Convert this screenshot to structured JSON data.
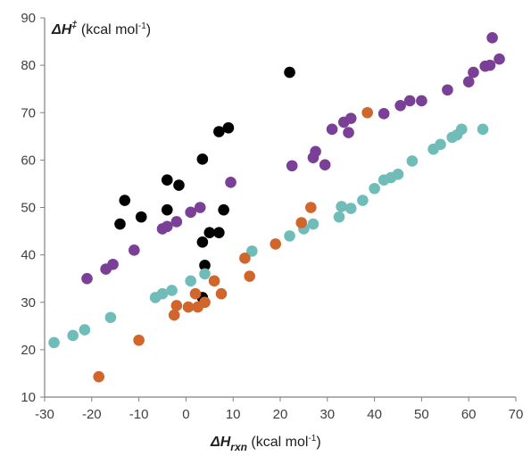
{
  "chart_data": {
    "type": "scatter",
    "xlabel": {
      "symbol": "ΔH",
      "subscript": "rxn",
      "unit": " (kcal mol",
      "unit_sup": "-1",
      "close": ")"
    },
    "ylabel": {
      "symbol": "ΔH",
      "superscript": "‡",
      "unit": " (kcal mol",
      "unit_sup": "-1",
      "close": ")"
    },
    "xlim": [
      -30,
      70
    ],
    "ylim": [
      10,
      90
    ],
    "xticks": [
      "-30",
      "-20",
      "-10",
      "0",
      "10",
      "20",
      "30",
      "40",
      "50",
      "60",
      "70"
    ],
    "yticks": [
      "10",
      "20",
      "30",
      "40",
      "50",
      "60",
      "70",
      "80",
      "90"
    ],
    "grid": false,
    "legend": "none",
    "series": [
      {
        "color": "#000000",
        "points": [
          [
            -13,
            51.5
          ],
          [
            -14,
            46.5
          ],
          [
            -9.5,
            48
          ],
          [
            -4,
            49.5
          ],
          [
            -4,
            55.8
          ],
          [
            -1.5,
            54.7
          ],
          [
            3.5,
            60.2
          ],
          [
            3.5,
            42.7
          ],
          [
            5,
            44.7
          ],
          [
            7,
            44.7
          ],
          [
            7,
            66
          ],
          [
            9,
            66.8
          ],
          [
            8,
            49.5
          ],
          [
            4,
            37.8
          ],
          [
            3.5,
            31
          ],
          [
            22,
            78.5
          ]
        ]
      },
      {
        "color": "#7a3f96",
        "points": [
          [
            -21,
            35
          ],
          [
            -17,
            37
          ],
          [
            -15.5,
            38
          ],
          [
            -11,
            41
          ],
          [
            -5,
            45.5
          ],
          [
            -4,
            46
          ],
          [
            -2,
            47
          ],
          [
            1,
            49
          ],
          [
            3,
            50
          ],
          [
            9.5,
            55.3
          ],
          [
            22.5,
            58.8
          ],
          [
            27,
            60.5
          ],
          [
            27.5,
            61.8
          ],
          [
            29.5,
            59
          ],
          [
            31,
            66.5
          ],
          [
            33.5,
            68
          ],
          [
            34.5,
            65.8
          ],
          [
            35,
            68.8
          ],
          [
            42,
            69.8
          ],
          [
            45.5,
            71.5
          ],
          [
            47.5,
            72.5
          ],
          [
            50,
            72.5
          ],
          [
            55.5,
            74.8
          ],
          [
            60,
            76.5
          ],
          [
            61,
            78.5
          ],
          [
            63.5,
            79.8
          ],
          [
            64.5,
            80
          ],
          [
            65,
            85.8
          ],
          [
            66.5,
            81.3
          ]
        ]
      },
      {
        "color": "#6fbcb9",
        "points": [
          [
            -28,
            21.5
          ],
          [
            -24,
            23
          ],
          [
            -21.5,
            24.2
          ],
          [
            -16,
            26.8
          ],
          [
            -6.5,
            31
          ],
          [
            -5,
            31.8
          ],
          [
            -3,
            32.5
          ],
          [
            1,
            34.5
          ],
          [
            4,
            36
          ],
          [
            14,
            40.8
          ],
          [
            22,
            44
          ],
          [
            25,
            45.5
          ],
          [
            27,
            46.5
          ],
          [
            32.5,
            48
          ],
          [
            33,
            50.2
          ],
          [
            35,
            49.8
          ],
          [
            37.5,
            51.5
          ],
          [
            40,
            54
          ],
          [
            42,
            55.8
          ],
          [
            43.5,
            56.3
          ],
          [
            45,
            57
          ],
          [
            48,
            59.8
          ],
          [
            52.5,
            62.3
          ],
          [
            54,
            63.3
          ],
          [
            56.5,
            64.8
          ],
          [
            57.5,
            65.3
          ],
          [
            58.5,
            66.5
          ],
          [
            63,
            66.5
          ]
        ]
      },
      {
        "color": "#d0662c",
        "points": [
          [
            -18.5,
            14.3
          ],
          [
            -10,
            22
          ],
          [
            -2.5,
            27.3
          ],
          [
            -2,
            29.3
          ],
          [
            0.5,
            29
          ],
          [
            2,
            31.8
          ],
          [
            2.5,
            29
          ],
          [
            4,
            30
          ],
          [
            6,
            34.5
          ],
          [
            7.5,
            31.8
          ],
          [
            12.5,
            39.3
          ],
          [
            13.5,
            35.5
          ],
          [
            19,
            42.3
          ],
          [
            24.5,
            46.8
          ],
          [
            26.5,
            50
          ],
          [
            38.5,
            70
          ]
        ]
      }
    ]
  }
}
